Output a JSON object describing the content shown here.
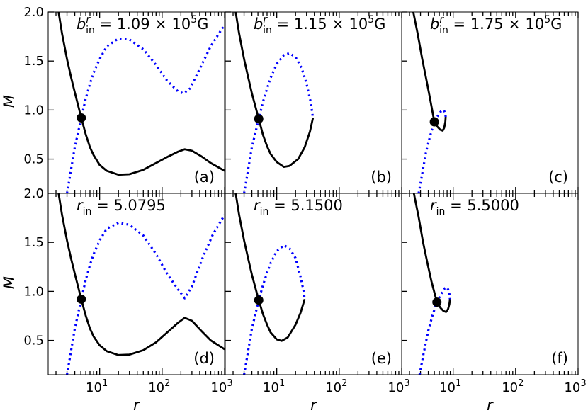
{
  "chart_data": {
    "type": "line",
    "layout": "2x3 panel grid, shared axes",
    "x_scale": "log",
    "xlim": [
      1.5,
      1000
    ],
    "ylim": [
      0.15,
      2.0
    ],
    "xlabel": "r",
    "ylabel": "M",
    "x_tick_labels": [
      {
        "value": 10,
        "base": "10",
        "exp": "1"
      },
      {
        "value": 100,
        "base": "10",
        "exp": "2"
      },
      {
        "value": 1000,
        "base": "10",
        "exp": "3"
      }
    ],
    "y_tick_labels": [
      "0.5",
      "1.0",
      "1.5",
      "2.0"
    ],
    "y_tick_values": [
      0.5,
      1.0,
      1.5,
      2.0
    ],
    "line_styles": {
      "solid": "#000000",
      "dotted": "#0000ff"
    },
    "panels": [
      {
        "tag": "(a)",
        "annotation": {
          "sym": "b",
          "sup": "r",
          "sub": "in",
          "text": " = 1.09 × 10",
          "exp": "5",
          "unit": "G"
        },
        "critical_point": [
          5.08,
          0.92
        ],
        "solid": [
          [
            1.95,
            2.2
          ],
          [
            2.2,
            2.0
          ],
          [
            2.5,
            1.78
          ],
          [
            3,
            1.52
          ],
          [
            3.5,
            1.33
          ],
          [
            4,
            1.18
          ],
          [
            5.08,
            0.92
          ],
          [
            6,
            0.75
          ],
          [
            7,
            0.62
          ],
          [
            8,
            0.54
          ],
          [
            10,
            0.44
          ],
          [
            13,
            0.38
          ],
          [
            20,
            0.34
          ],
          [
            30,
            0.345
          ],
          [
            50,
            0.39
          ],
          [
            80,
            0.46
          ],
          [
            120,
            0.52
          ],
          [
            180,
            0.575
          ],
          [
            230,
            0.6
          ],
          [
            300,
            0.585
          ],
          [
            420,
            0.53
          ],
          [
            600,
            0.46
          ],
          [
            1000,
            0.38
          ]
        ],
        "dotted": [
          [
            3.0,
            0.15
          ],
          [
            3.5,
            0.4
          ],
          [
            4,
            0.62
          ],
          [
            5.08,
            0.92
          ],
          [
            6,
            1.12
          ],
          [
            7,
            1.27
          ],
          [
            8,
            1.38
          ],
          [
            10,
            1.52
          ],
          [
            13,
            1.65
          ],
          [
            20,
            1.73
          ],
          [
            30,
            1.72
          ],
          [
            50,
            1.62
          ],
          [
            80,
            1.46
          ],
          [
            120,
            1.3
          ],
          [
            180,
            1.19
          ],
          [
            220,
            1.17
          ],
          [
            280,
            1.22
          ],
          [
            400,
            1.42
          ],
          [
            600,
            1.65
          ],
          [
            1000,
            1.87
          ]
        ]
      },
      {
        "tag": "(b)",
        "annotation": {
          "sym": "b",
          "sup": "r",
          "sub": "in",
          "text": " = 1.15 × 10",
          "exp": "5",
          "unit": "G"
        },
        "critical_point": [
          5.15,
          0.91
        ],
        "solid": [
          [
            1.95,
            2.2
          ],
          [
            2.2,
            2.0
          ],
          [
            2.5,
            1.78
          ],
          [
            3,
            1.52
          ],
          [
            3.5,
            1.33
          ],
          [
            4,
            1.17
          ],
          [
            5.15,
            0.91
          ],
          [
            6,
            0.75
          ],
          [
            7,
            0.63
          ],
          [
            8,
            0.55
          ],
          [
            10,
            0.47
          ],
          [
            13,
            0.42
          ],
          [
            16,
            0.43
          ],
          [
            22,
            0.5
          ],
          [
            28,
            0.62
          ],
          [
            34,
            0.78
          ],
          [
            38,
            0.92
          ]
        ],
        "dotted": [
          [
            3.0,
            0.15
          ],
          [
            3.5,
            0.4
          ],
          [
            4,
            0.62
          ],
          [
            5.15,
            0.91
          ],
          [
            6,
            1.08
          ],
          [
            7,
            1.22
          ],
          [
            8,
            1.33
          ],
          [
            10,
            1.47
          ],
          [
            13,
            1.56
          ],
          [
            16,
            1.58
          ],
          [
            20,
            1.54
          ],
          [
            25,
            1.43
          ],
          [
            30,
            1.27
          ],
          [
            35,
            1.08
          ],
          [
            38,
            0.92
          ]
        ]
      },
      {
        "tag": "(c)",
        "annotation": {
          "sym": "b",
          "sup": "r",
          "sub": "in",
          "text": " = 1.75 × 10",
          "exp": "5",
          "unit": "G"
        },
        "critical_point": [
          5.0,
          0.88
        ],
        "solid": [
          [
            2.0,
            2.2
          ],
          [
            2.3,
            2.0
          ],
          [
            2.7,
            1.78
          ],
          [
            3.2,
            1.52
          ],
          [
            3.7,
            1.32
          ],
          [
            4.2,
            1.14
          ],
          [
            5.0,
            0.88
          ],
          [
            5.6,
            0.83
          ],
          [
            6.2,
            0.8
          ],
          [
            6.8,
            0.79
          ],
          [
            7.2,
            0.82
          ],
          [
            7.5,
            0.88
          ],
          [
            7.6,
            0.93
          ]
        ],
        "dotted": [
          [
            2.8,
            0.15
          ],
          [
            3.2,
            0.35
          ],
          [
            3.7,
            0.58
          ],
          [
            4.3,
            0.74
          ],
          [
            5.0,
            0.88
          ],
          [
            5.8,
            0.95
          ],
          [
            6.6,
            1.0
          ],
          [
            7.2,
            0.99
          ],
          [
            7.5,
            0.96
          ],
          [
            7.6,
            0.93
          ]
        ]
      },
      {
        "tag": "(d)",
        "annotation": {
          "sym": "r",
          "sub": "in",
          "text": " = 5.0795"
        },
        "critical_point": [
          5.08,
          0.92
        ],
        "solid": [
          [
            1.95,
            2.2
          ],
          [
            2.2,
            2.0
          ],
          [
            2.5,
            1.78
          ],
          [
            3,
            1.52
          ],
          [
            3.5,
            1.33
          ],
          [
            4,
            1.18
          ],
          [
            5.08,
            0.92
          ],
          [
            6,
            0.75
          ],
          [
            7,
            0.62
          ],
          [
            8,
            0.54
          ],
          [
            10,
            0.45
          ],
          [
            13,
            0.39
          ],
          [
            20,
            0.35
          ],
          [
            30,
            0.355
          ],
          [
            50,
            0.4
          ],
          [
            80,
            0.48
          ],
          [
            120,
            0.58
          ],
          [
            180,
            0.68
          ],
          [
            230,
            0.73
          ],
          [
            300,
            0.7
          ],
          [
            420,
            0.6
          ],
          [
            600,
            0.5
          ],
          [
            1000,
            0.41
          ]
        ],
        "dotted": [
          [
            3.0,
            0.15
          ],
          [
            3.5,
            0.4
          ],
          [
            4,
            0.62
          ],
          [
            5.08,
            0.92
          ],
          [
            6,
            1.12
          ],
          [
            7,
            1.27
          ],
          [
            8,
            1.38
          ],
          [
            10,
            1.52
          ],
          [
            13,
            1.64
          ],
          [
            20,
            1.7
          ],
          [
            30,
            1.68
          ],
          [
            50,
            1.57
          ],
          [
            80,
            1.38
          ],
          [
            120,
            1.18
          ],
          [
            180,
            1.02
          ],
          [
            230,
            0.93
          ],
          [
            300,
            1.05
          ],
          [
            450,
            1.35
          ],
          [
            650,
            1.58
          ],
          [
            1000,
            1.78
          ]
        ]
      },
      {
        "tag": "(e)",
        "annotation": {
          "sym": "r",
          "sub": "in",
          "text": " = 5.1500"
        },
        "critical_point": [
          5.15,
          0.91
        ],
        "solid": [
          [
            1.95,
            2.2
          ],
          [
            2.2,
            2.0
          ],
          [
            2.5,
            1.78
          ],
          [
            3,
            1.52
          ],
          [
            3.5,
            1.33
          ],
          [
            4,
            1.17
          ],
          [
            5.15,
            0.91
          ],
          [
            6,
            0.77
          ],
          [
            7,
            0.66
          ],
          [
            8,
            0.58
          ],
          [
            10,
            0.51
          ],
          [
            12,
            0.495
          ],
          [
            15,
            0.53
          ],
          [
            20,
            0.66
          ],
          [
            24,
            0.78
          ],
          [
            28,
            0.92
          ]
        ],
        "dotted": [
          [
            3.0,
            0.15
          ],
          [
            3.5,
            0.4
          ],
          [
            4,
            0.62
          ],
          [
            5.15,
            0.91
          ],
          [
            6,
            1.06
          ],
          [
            7,
            1.19
          ],
          [
            8,
            1.29
          ],
          [
            10,
            1.41
          ],
          [
            13,
            1.47
          ],
          [
            16,
            1.44
          ],
          [
            20,
            1.34
          ],
          [
            24,
            1.15
          ],
          [
            27,
            1.0
          ],
          [
            28,
            0.92
          ]
        ]
      },
      {
        "tag": "(f)",
        "annotation": {
          "sym": "r",
          "sub": "in",
          "text": " = 5.5000"
        },
        "critical_point": [
          5.5,
          0.89
        ],
        "solid": [
          [
            2.05,
            2.2
          ],
          [
            2.35,
            2.0
          ],
          [
            2.8,
            1.76
          ],
          [
            3.3,
            1.5
          ],
          [
            3.9,
            1.28
          ],
          [
            4.5,
            1.1
          ],
          [
            5.5,
            0.89
          ],
          [
            6.3,
            0.83
          ],
          [
            7.0,
            0.8
          ],
          [
            7.7,
            0.79
          ],
          [
            8.3,
            0.82
          ],
          [
            8.7,
            0.87
          ],
          [
            8.9,
            0.92
          ]
        ],
        "dotted": [
          [
            2.9,
            0.15
          ],
          [
            3.4,
            0.38
          ],
          [
            4,
            0.6
          ],
          [
            4.7,
            0.76
          ],
          [
            5.5,
            0.89
          ],
          [
            6.4,
            0.97
          ],
          [
            7.3,
            1.03
          ],
          [
            8.0,
            1.04
          ],
          [
            8.6,
            1.0
          ],
          [
            8.9,
            0.92
          ]
        ]
      }
    ]
  }
}
